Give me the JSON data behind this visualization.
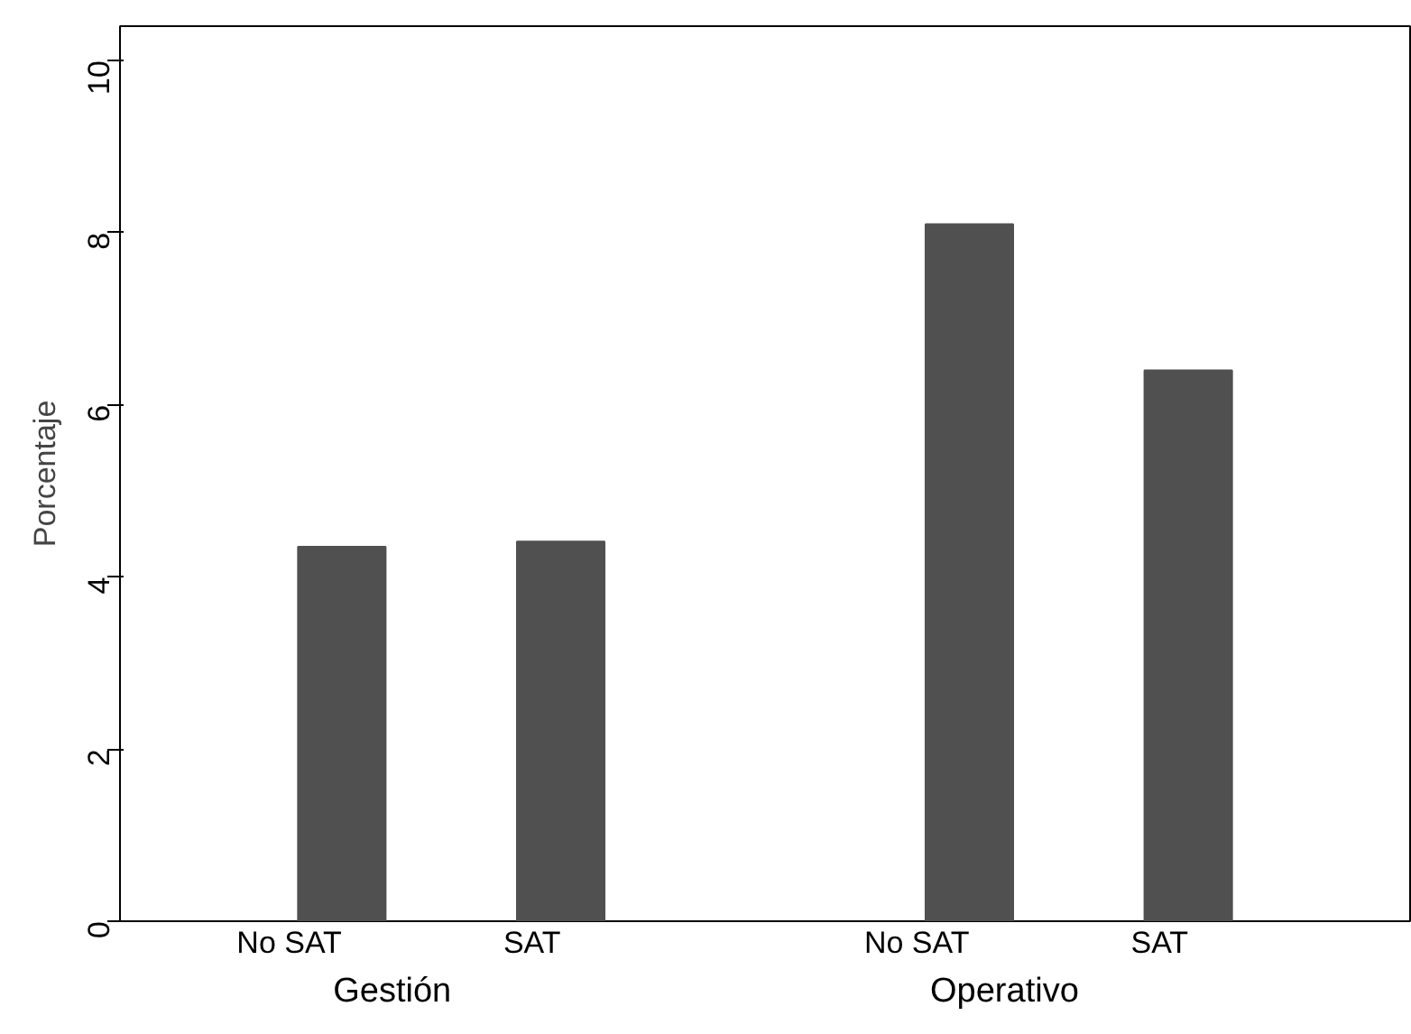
{
  "chart_data": {
    "type": "bar",
    "ylabel": "Porcentaje",
    "categories": [
      "No SAT",
      "SAT",
      "No SAT",
      "SAT"
    ],
    "values": [
      4.35,
      4.41,
      8.1,
      6.4
    ],
    "color": "#505050",
    "ylim": [
      0,
      10.4
    ],
    "yticks": [
      0,
      2,
      4,
      6,
      8,
      10
    ],
    "annotations": [
      "Gestión",
      "Operativo"
    ]
  }
}
